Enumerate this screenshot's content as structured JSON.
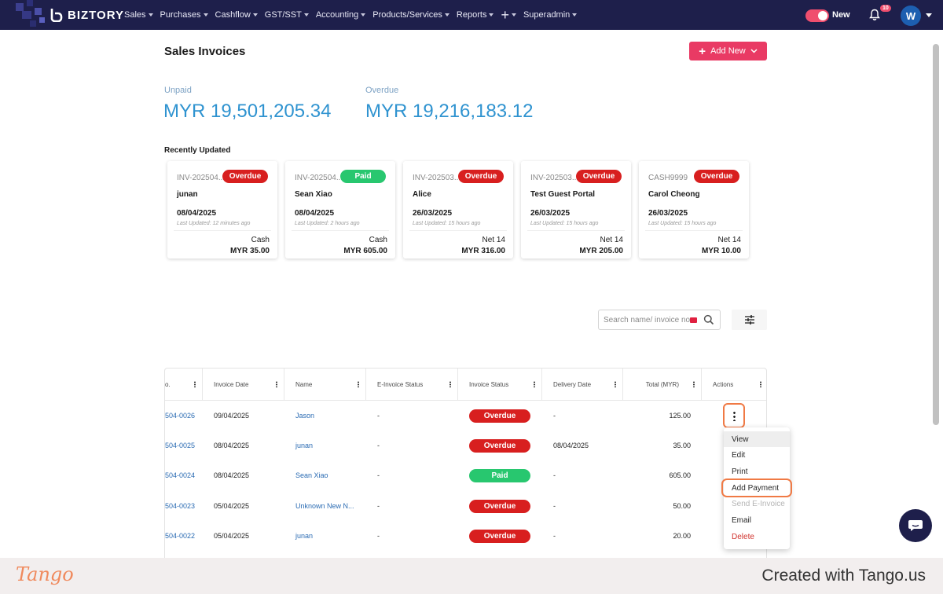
{
  "nav": {
    "brand": "BIZTORY",
    "items": [
      {
        "label": "Sales"
      },
      {
        "label": "Purchases"
      },
      {
        "label": "Cashflow"
      },
      {
        "label": "GST/SST"
      },
      {
        "label": "Accounting"
      },
      {
        "label": "Products/Services"
      },
      {
        "label": "Reports"
      },
      {
        "label": "+"
      },
      {
        "label": "Superadmin"
      }
    ],
    "toggle_label": "New",
    "notification_count": "10",
    "avatar_initial": "W"
  },
  "page": {
    "title": "Sales Invoices",
    "add_new_label": "Add New"
  },
  "stats": {
    "unpaid_label": "Unpaid",
    "unpaid_value": "MYR 19,501,205.34",
    "overdue_label": "Overdue",
    "overdue_value": "MYR 19,216,183.12"
  },
  "recent": {
    "label": "Recently Updated",
    "cards": [
      {
        "invoice": "INV-202504...",
        "status": "Overdue",
        "name": "junan",
        "date": "08/04/2025",
        "updated": "Last Updated: 12 minutes ago",
        "term": "Cash",
        "amount": "MYR 35.00"
      },
      {
        "invoice": "INV-202504...",
        "status": "Paid",
        "name": "Sean Xiao",
        "date": "08/04/2025",
        "updated": "Last Updated: 2 hours ago",
        "term": "Cash",
        "amount": "MYR 605.00"
      },
      {
        "invoice": "INV-202503...",
        "status": "Overdue",
        "name": "Alice",
        "date": "26/03/2025",
        "updated": "Last Updated: 15 hours ago",
        "term": "Net 14",
        "amount": "MYR 316.00"
      },
      {
        "invoice": "INV-202503...",
        "status": "Overdue",
        "name": "Test Guest Portal",
        "date": "26/03/2025",
        "updated": "Last Updated: 15 hours ago",
        "term": "Net 14",
        "amount": "MYR 205.00"
      },
      {
        "invoice": "CASH9999",
        "status": "Overdue",
        "name": "Carol Cheong",
        "date": "26/03/2025",
        "updated": "Last Updated: 15 hours ago",
        "term": "Net 14",
        "amount": "MYR 10.00"
      }
    ]
  },
  "search": {
    "placeholder": "Search name/ invoice no."
  },
  "table": {
    "columns": [
      "o.",
      "Invoice Date",
      "Name",
      "E-Invoice Status",
      "Invoice Status",
      "Delivery Date",
      "Total (MYR)",
      "Actions"
    ],
    "rows": [
      {
        "no": "504-0026",
        "date": "09/04/2025",
        "name": "Jason",
        "einvoice": "-",
        "status": "Overdue",
        "delivery": "-",
        "total": "125.00"
      },
      {
        "no": "504-0025",
        "date": "08/04/2025",
        "name": "junan",
        "einvoice": "-",
        "status": "Overdue",
        "delivery": "08/04/2025",
        "total": "35.00"
      },
      {
        "no": "504-0024",
        "date": "08/04/2025",
        "name": "Sean Xiao",
        "einvoice": "-",
        "status": "Paid",
        "delivery": "-",
        "total": "605.00"
      },
      {
        "no": "504-0023",
        "date": "05/04/2025",
        "name": "Unknown New N...",
        "einvoice": "-",
        "status": "Overdue",
        "delivery": "-",
        "total": "50.00"
      },
      {
        "no": "504-0022",
        "date": "05/04/2025",
        "name": "junan",
        "einvoice": "-",
        "status": "Overdue",
        "delivery": "-",
        "total": "20.00"
      }
    ]
  },
  "action_menu": {
    "items": [
      {
        "label": "View"
      },
      {
        "label": "Edit"
      },
      {
        "label": "Print"
      },
      {
        "label": "Add Payment"
      },
      {
        "label": "Send E-Invoice"
      },
      {
        "label": "Email"
      },
      {
        "label": "Delete"
      }
    ]
  },
  "footer": {
    "brand": "Tango",
    "created": "Created with Tango.us"
  },
  "colors": {
    "nav_bg": "#1e1f4b",
    "accent": "#e93a64",
    "overdue": "#d81f1f",
    "paid": "#28c76f",
    "stat_blue": "#2f93d0",
    "highlight": "#f07a45"
  }
}
